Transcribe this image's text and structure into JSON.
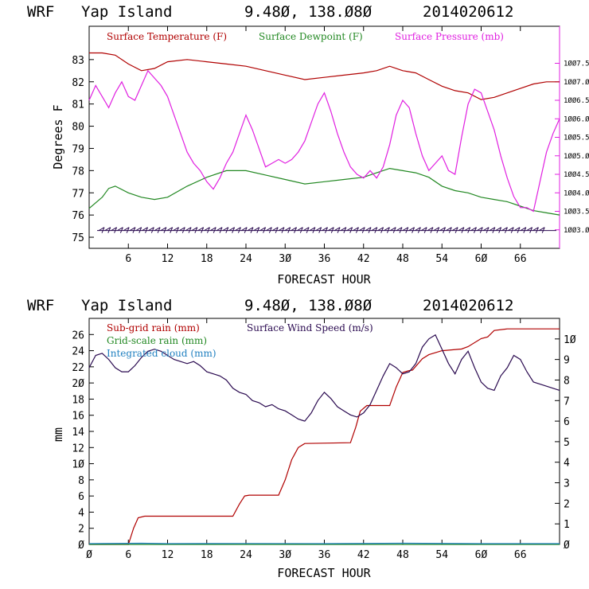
{
  "colors": {
    "temperature": "#b00000",
    "dewpoint": "#228822",
    "pressure": "#e020e0",
    "subgrid_rain": "#b00000",
    "gridscale_rain": "#228822",
    "cloud": "#2080c0",
    "wind": "#2a0a50",
    "axis": "#000000"
  },
  "chart_data": [
    {
      "type": "line",
      "header": {
        "model": "WRF",
        "location": "Yap Island",
        "coords": "9.48Ø, 138.Ø8Ø",
        "run": "2014020612"
      },
      "legend": [
        "Surface Temperature (F)",
        "Surface Dewpoint (F)",
        "Surface Pressure (mb)"
      ],
      "xlabel": "FORECAST HOUR",
      "ylabel": "Degrees F",
      "xlim": [
        0,
        72
      ],
      "ylim": [
        74.5,
        84.5
      ],
      "y2lim": [
        1002.5,
        1008.5
      ],
      "xticks": [
        6,
        12,
        18,
        24,
        30,
        36,
        42,
        48,
        54,
        60,
        66
      ],
      "xtick_labels": [
        "6",
        "12",
        "18",
        "24",
        "3Ø",
        "36",
        "42",
        "48",
        "54",
        "6Ø",
        "66"
      ],
      "yticks": [
        75,
        76,
        77,
        78,
        79,
        80,
        81,
        82,
        83
      ],
      "y2ticks": [
        1003.0,
        1003.5,
        1004.0,
        1004.5,
        1005.0,
        1005.5,
        1006.0,
        1006.5,
        1007.0,
        1007.5
      ],
      "y2tick_labels": [
        "1ØØ3.Ø",
        "1ØØ3.5",
        "1ØØ4.Ø",
        "1ØØ4.5",
        "1ØØ5.Ø",
        "1ØØ5.5",
        "1ØØ6.Ø",
        "1ØØ6.5",
        "1ØØ7.Ø",
        "1ØØ7.5"
      ],
      "series": [
        {
          "name": "Surface Temperature (F)",
          "axis": "left",
          "x": [
            0,
            2,
            4,
            6,
            8,
            10,
            12,
            15,
            18,
            21,
            24,
            27,
            30,
            33,
            36,
            39,
            42,
            44,
            46,
            48,
            50,
            52,
            54,
            56,
            58,
            60,
            62,
            64,
            66,
            68,
            70,
            72
          ],
          "y": [
            83.3,
            83.3,
            83.2,
            82.8,
            82.5,
            82.6,
            82.9,
            83.0,
            82.9,
            82.8,
            82.7,
            82.5,
            82.3,
            82.1,
            82.2,
            82.3,
            82.4,
            82.5,
            82.7,
            82.5,
            82.4,
            82.1,
            81.8,
            81.6,
            81.5,
            81.2,
            81.3,
            81.5,
            81.7,
            81.9,
            82.0,
            82.0
          ]
        },
        {
          "name": "Surface Dewpoint (F)",
          "axis": "left",
          "x": [
            0,
            2,
            3,
            4,
            6,
            8,
            10,
            12,
            15,
            18,
            21,
            24,
            27,
            30,
            33,
            36,
            39,
            42,
            44,
            46,
            48,
            50,
            52,
            54,
            56,
            58,
            60,
            62,
            64,
            66,
            68,
            70,
            72
          ],
          "y": [
            76.3,
            76.8,
            77.2,
            77.3,
            77.0,
            76.8,
            76.7,
            76.8,
            77.3,
            77.7,
            78.0,
            78.0,
            77.8,
            77.6,
            77.4,
            77.5,
            77.6,
            77.7,
            77.9,
            78.1,
            78.0,
            77.9,
            77.7,
            77.3,
            77.1,
            77.0,
            76.8,
            76.7,
            76.6,
            76.4,
            76.2,
            76.1,
            76.0
          ]
        },
        {
          "name": "Surface Pressure (mb)",
          "axis": "right",
          "x": [
            0,
            1,
            2,
            3,
            4,
            5,
            6,
            7,
            8,
            9,
            10,
            11,
            12,
            13,
            14,
            15,
            16,
            17,
            18,
            19,
            20,
            21,
            22,
            23,
            24,
            25,
            26,
            27,
            28,
            29,
            30,
            31,
            32,
            33,
            34,
            35,
            36,
            37,
            38,
            39,
            40,
            41,
            42,
            43,
            44,
            45,
            46,
            47,
            48,
            49,
            50,
            51,
            52,
            53,
            54,
            55,
            56,
            57,
            58,
            59,
            60,
            61,
            62,
            63,
            64,
            65,
            66,
            67,
            68,
            69,
            70,
            71,
            72
          ],
          "y": [
            1006.5,
            1006.9,
            1006.6,
            1006.3,
            1006.7,
            1007.0,
            1006.6,
            1006.5,
            1006.9,
            1007.3,
            1007.1,
            1006.9,
            1006.6,
            1006.1,
            1005.6,
            1005.1,
            1004.8,
            1004.6,
            1004.3,
            1004.1,
            1004.4,
            1004.8,
            1005.1,
            1005.6,
            1006.1,
            1005.7,
            1005.2,
            1004.7,
            1004.8,
            1004.9,
            1004.8,
            1004.9,
            1005.1,
            1005.4,
            1005.9,
            1006.4,
            1006.7,
            1006.2,
            1005.6,
            1005.1,
            1004.7,
            1004.5,
            1004.4,
            1004.6,
            1004.4,
            1004.7,
            1005.3,
            1006.1,
            1006.5,
            1006.3,
            1005.6,
            1005.0,
            1004.6,
            1004.8,
            1005.0,
            1004.6,
            1004.5,
            1005.5,
            1006.4,
            1006.8,
            1006.7,
            1006.2,
            1005.7,
            1005.0,
            1004.4,
            1003.9,
            1003.6,
            1003.6,
            1003.5,
            1004.3,
            1005.1,
            1005.6,
            1006.0
          ]
        }
      ],
      "wind_barbs": {
        "y": 75.3,
        "direction": "easterly",
        "count": 72
      }
    },
    {
      "type": "line",
      "header": {
        "model": "WRF",
        "location": "Yap Island",
        "coords": "9.48Ø, 138.Ø8Ø",
        "run": "2014020612"
      },
      "legend": [
        "Sub-grid rain (mm)",
        "Surface Wind Speed (m/s)",
        "Grid-scale rain (mm)",
        "Integrated cloud (mm)"
      ],
      "xlabel": "FORECAST HOUR",
      "ylabel": "mm",
      "xlim": [
        0,
        72
      ],
      "ylim": [
        0,
        28
      ],
      "y2lim": [
        0,
        11
      ],
      "xticks": [
        0,
        6,
        12,
        18,
        24,
        30,
        36,
        42,
        48,
        54,
        60,
        66
      ],
      "xtick_labels": [
        "Ø",
        "6",
        "12",
        "18",
        "24",
        "3Ø",
        "36",
        "42",
        "48",
        "54",
        "6Ø",
        "66"
      ],
      "yticks": [
        0,
        2,
        4,
        6,
        8,
        10,
        12,
        14,
        16,
        18,
        20,
        22,
        24,
        26
      ],
      "ytick_labels": [
        "Ø",
        "2",
        "4",
        "6",
        "8",
        "1Ø",
        "12",
        "14",
        "16",
        "18",
        "2Ø",
        "22",
        "24",
        "26"
      ],
      "y2ticks": [
        0,
        1,
        2,
        3,
        4,
        5,
        6,
        7,
        8,
        9,
        10
      ],
      "y2tick_labels": [
        "Ø",
        "1",
        "2",
        "3",
        "4",
        "5",
        "6",
        "7",
        "8",
        "9",
        "1Ø"
      ],
      "series": [
        {
          "name": "Sub-grid rain (mm)",
          "axis": "left",
          "x": [
            0,
            6,
            6.8,
            7.5,
            8.5,
            22,
            23,
            23.8,
            24.5,
            29,
            30,
            31,
            32,
            33,
            40,
            40.8,
            41.5,
            42.5,
            46,
            47,
            48,
            48.8,
            49.5,
            51,
            52,
            54,
            57,
            58,
            60,
            61,
            62,
            64,
            66,
            68,
            70,
            72
          ],
          "y": [
            0,
            0,
            2.0,
            3.3,
            3.5,
            3.5,
            5.0,
            6.0,
            6.1,
            6.1,
            8.0,
            10.5,
            12.0,
            12.5,
            12.6,
            14.5,
            16.5,
            17.2,
            17.2,
            19.5,
            21.3,
            21.5,
            21.6,
            23.0,
            23.5,
            24.0,
            24.2,
            24.5,
            25.5,
            25.7,
            26.5,
            26.7,
            26.7,
            26.7,
            26.7,
            26.7
          ]
        },
        {
          "name": "Grid-scale rain (mm)",
          "axis": "left",
          "x": [
            0,
            72
          ],
          "y": [
            0,
            0
          ]
        },
        {
          "name": "Integrated cloud (mm)",
          "axis": "left",
          "x": [
            0,
            8,
            12,
            24,
            36,
            48,
            60,
            72
          ],
          "y": [
            0.1,
            0.15,
            0.1,
            0.12,
            0.1,
            0.15,
            0.1,
            0.1
          ]
        },
        {
          "name": "Surface Wind Speed (m/s)",
          "axis": "right",
          "x": [
            0,
            1,
            2,
            3,
            4,
            5,
            6,
            7,
            8,
            9,
            10,
            11,
            12,
            13,
            14,
            15,
            16,
            17,
            18,
            19,
            20,
            21,
            22,
            23,
            24,
            25,
            26,
            27,
            28,
            29,
            30,
            31,
            32,
            33,
            34,
            35,
            36,
            37,
            38,
            39,
            40,
            41,
            42,
            43,
            44,
            45,
            46,
            47,
            48,
            49,
            50,
            51,
            52,
            53,
            54,
            55,
            56,
            57,
            58,
            59,
            60,
            61,
            62,
            63,
            64,
            65,
            66,
            67,
            68,
            69,
            70,
            71,
            72
          ],
          "y": [
            8.6,
            9.2,
            9.3,
            9.0,
            8.6,
            8.4,
            8.4,
            8.7,
            9.1,
            9.4,
            9.5,
            9.4,
            9.2,
            9.0,
            8.9,
            8.8,
            8.9,
            8.7,
            8.4,
            8.3,
            8.2,
            8.0,
            7.6,
            7.4,
            7.3,
            7.0,
            6.9,
            6.7,
            6.8,
            6.6,
            6.5,
            6.3,
            6.1,
            6.0,
            6.4,
            7.0,
            7.4,
            7.1,
            6.7,
            6.5,
            6.3,
            6.2,
            6.4,
            6.8,
            7.5,
            8.2,
            8.8,
            8.6,
            8.3,
            8.4,
            8.8,
            9.6,
            10.0,
            10.2,
            9.5,
            8.8,
            8.3,
            9.0,
            9.4,
            8.6,
            7.9,
            7.6,
            7.5,
            8.2,
            8.6,
            9.2,
            9.0,
            8.4,
            7.9,
            7.8,
            7.7,
            7.6,
            7.5
          ]
        }
      ]
    }
  ]
}
